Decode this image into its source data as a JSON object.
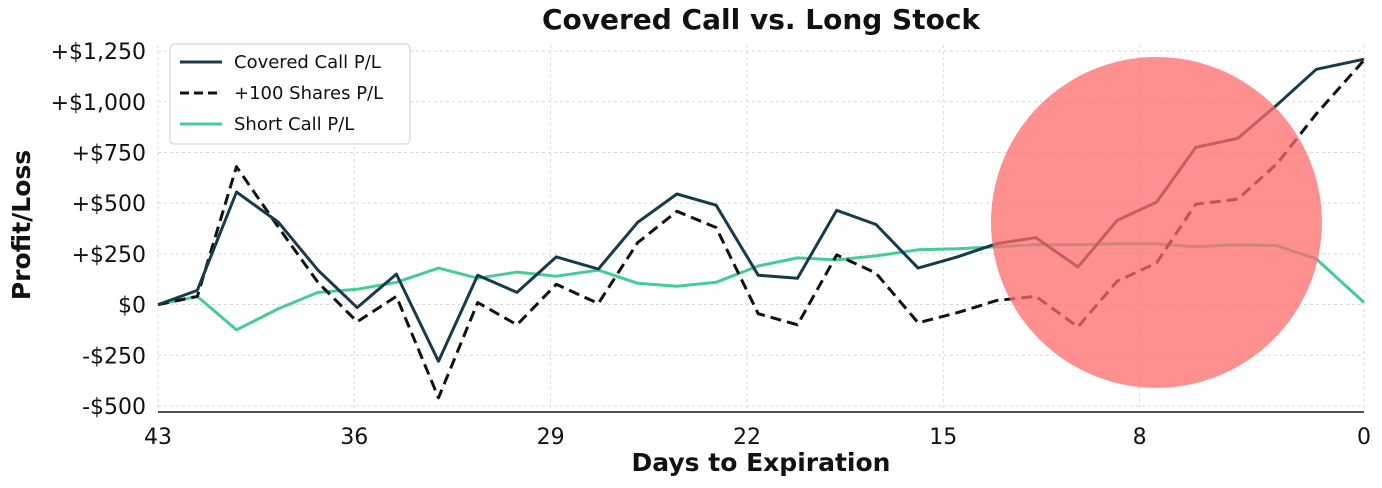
{
  "chart_data": {
    "type": "line",
    "title": "Covered Call vs. Long Stock",
    "xlabel": "Days to Expiration",
    "ylabel": "Profit/Loss",
    "x_ticks": [
      43,
      36,
      29,
      22,
      15,
      8,
      0
    ],
    "y_ticks": [
      -500,
      -250,
      0,
      250,
      500,
      750,
      1000,
      1250
    ],
    "y_tick_labels": [
      "-$500",
      "-$250",
      "$0",
      "+$250",
      "+$500",
      "+$750",
      "+$1,000",
      "+$1,250"
    ],
    "xlim": [
      43,
      0
    ],
    "ylim": [
      -520,
      1280
    ],
    "x_reversed": true,
    "grid": true,
    "legend_position": "top-left",
    "x": [
      43,
      41.6,
      40.2,
      38.7,
      37.3,
      35.9,
      34.5,
      33.0,
      31.6,
      30.2,
      28.8,
      27.3,
      25.9,
      24.5,
      23.1,
      21.6,
      20.2,
      18.8,
      17.4,
      15.9,
      14.5,
      13.1,
      11.7,
      10.2,
      8.8,
      7.4,
      6.0,
      4.5,
      3.1,
      1.7,
      0
    ],
    "series": [
      {
        "name": "Covered Call P/L",
        "color": "#173b4c",
        "dash": "solid",
        "values": [
          0,
          70,
          555,
          405,
          170,
          -15,
          150,
          -280,
          145,
          60,
          235,
          175,
          405,
          545,
          490,
          145,
          130,
          465,
          395,
          180,
          235,
          300,
          330,
          185,
          415,
          505,
          775,
          820,
          985,
          1160,
          1210
        ]
      },
      {
        "name": "+100 Shares P/L",
        "color": "#111111",
        "dash": "dashed",
        "values": [
          0,
          40,
          680,
          380,
          110,
          -85,
          40,
          -460,
          10,
          -100,
          100,
          5,
          305,
          460,
          380,
          -45,
          -100,
          245,
          155,
          -90,
          -40,
          20,
          40,
          -110,
          115,
          205,
          495,
          520,
          695,
          940,
          1205
        ]
      },
      {
        "name": "Short Call P/L",
        "color": "#45cc9b",
        "dash": "solid",
        "values": [
          0,
          40,
          -125,
          -20,
          60,
          75,
          110,
          180,
          130,
          160,
          140,
          170,
          105,
          90,
          110,
          190,
          230,
          220,
          240,
          270,
          275,
          285,
          295,
          295,
          300,
          300,
          285,
          295,
          290,
          225,
          10
        ]
      }
    ],
    "overlay_circle": {
      "color": "#ff6b6b",
      "opacity": 0.75,
      "center_x": 7.4,
      "center_y": 405,
      "radius_x_days": 5.9
    }
  }
}
